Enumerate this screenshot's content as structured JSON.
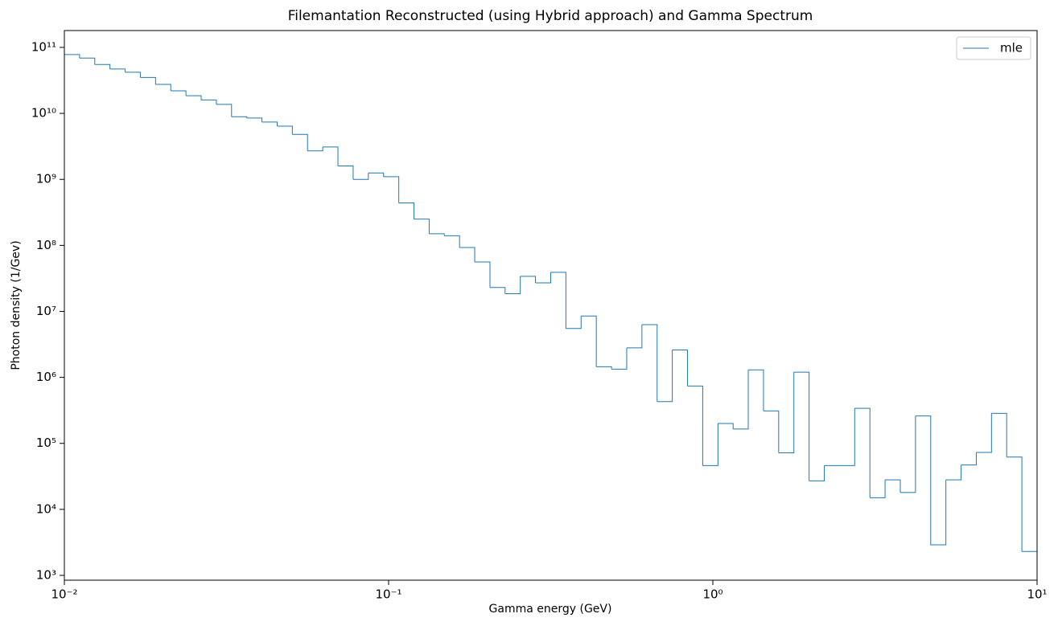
{
  "chart_data": {
    "type": "histogram",
    "title": "Filemantation Reconstructed (using Hybrid approach) and Gamma Spectrum",
    "xlabel": "Gamma energy (GeV)",
    "ylabel": "Photon density (1/Gev)",
    "xscale": "log",
    "yscale": "log",
    "bins": [
      0.01,
      0.01114,
      0.01241,
      0.01382,
      0.0154,
      0.01715,
      0.01911,
      0.02129,
      0.02371,
      0.02642,
      0.02943,
      0.03278,
      0.03652,
      0.04068,
      0.04532,
      0.05048,
      0.05623,
      0.06264,
      0.06978,
      0.07774,
      0.0866,
      0.09647,
      0.1075,
      0.1197,
      0.1334,
      0.1485,
      0.1655,
      0.1843,
      0.2054,
      0.2287,
      0.2548,
      0.2838,
      0.3162,
      0.3522,
      0.3924,
      0.4371,
      0.487,
      0.5425,
      0.6043,
      0.6732,
      0.7499,
      0.8354,
      0.9306,
      1.037,
      1.155,
      1.286,
      1.433,
      1.596,
      1.778,
      1.981,
      2.207,
      2.458,
      2.738,
      3.051,
      3.398,
      3.786,
      4.217,
      4.698,
      5.233,
      5.83,
      6.494,
      7.234,
      8.058,
      8.977,
      10
    ],
    "series": [
      {
        "name": "mle",
        "color": "#1f77b4",
        "values": [
          78000000000.0,
          69000000000.0,
          55000000000.0,
          47000000000.0,
          42000000000.0,
          35000000000.0,
          27500000000.0,
          22000000000.0,
          18500000000.0,
          16000000000.0,
          13700000000.0,
          8900000000.0,
          8500000000.0,
          7400000000.0,
          6400000000.0,
          4800000000.0,
          2700000000.0,
          3100000000.0,
          1600000000.0,
          1000000000.0,
          1250000000.0,
          1100000000.0,
          440000000.0,
          250000000.0,
          150000000.0,
          140000000.0,
          93000000.0,
          56000000.0,
          23000000.0,
          18500000.0,
          34000000.0,
          27000000.0,
          39000000.0,
          5500000.0,
          8500000.0,
          1450000.0,
          1330000.0,
          2800000.0,
          6300000.0,
          430000.0,
          2600000.0,
          740000.0,
          46000.0,
          200000.0,
          165000.0,
          1300000.0,
          310000.0,
          72000.0,
          1200000.0,
          27000.0,
          46000.0,
          46000.0,
          340000.0,
          15000.0,
          28000.0,
          18000.0,
          260000.0,
          2900.0,
          28000.0,
          47000.0,
          73000.0,
          285000.0,
          62000.0,
          2300.0
        ]
      }
    ],
    "xlim": [
      0.01,
      10
    ],
    "xticks": [
      {
        "value": 0.01,
        "label": "10⁻²"
      },
      {
        "value": 0.1,
        "label": "10⁻¹"
      },
      {
        "value": 1,
        "label": "10⁰"
      },
      {
        "value": 10,
        "label": "10¹"
      }
    ],
    "ylim": [
      845,
      180000000000.0
    ],
    "yticks": [
      {
        "value": 1000,
        "label": "10³"
      },
      {
        "value": 10000,
        "label": "10⁴"
      },
      {
        "value": 100000,
        "label": "10⁵"
      },
      {
        "value": 1000000,
        "label": "10⁶"
      },
      {
        "value": 10000000,
        "label": "10⁷"
      },
      {
        "value": 100000000,
        "label": "10⁸"
      },
      {
        "value": 1000000000,
        "label": "10⁹"
      },
      {
        "value": 10000000000,
        "label": "10¹⁰"
      },
      {
        "value": 100000000000,
        "label": "10¹¹"
      }
    ],
    "legend": "upper right",
    "grid": false
  }
}
